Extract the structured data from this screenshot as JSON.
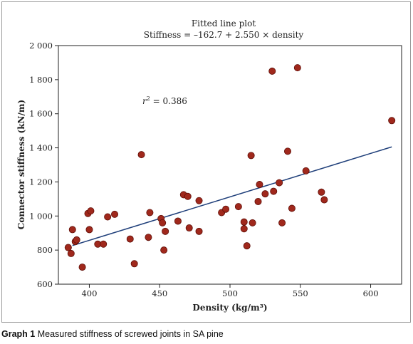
{
  "figure": {
    "title_line1": "Fitted line plot",
    "title_line2": "Stiffness = –162.7 + 2.550 × density",
    "r2_label": "r",
    "r2_sup": "2",
    "r2_value": " = 0.386"
  },
  "caption": {
    "label": "Graph 1",
    "text": " Measured stiffness of screwed joints in SA pine"
  },
  "colors": {
    "point_fill": "#a0281c",
    "point_stroke": "#5e0f08",
    "fit_line": "#1f3f7a",
    "axis": "#222222"
  },
  "chart_data": {
    "type": "scatter",
    "title": "Fitted line plot",
    "subtitle": "Stiffness = –162.7 + 2.550 × density",
    "xlabel": "Density (kg/m³)",
    "ylabel": "Connector stiffness (kN/m)",
    "xlim": [
      378,
      622
    ],
    "ylim": [
      600,
      2000
    ],
    "x_ticks": [
      400,
      450,
      500,
      550,
      600
    ],
    "x_tick_labels": [
      "400",
      "450",
      "500",
      "550",
      "600"
    ],
    "y_ticks": [
      600,
      800,
      1000,
      1200,
      1400,
      1600,
      1800,
      2000
    ],
    "y_tick_labels": [
      "600",
      "800",
      "1 000",
      "1 200",
      "1 400",
      "1 600",
      "1 800",
      "2 000"
    ],
    "grid": false,
    "fit_line": {
      "intercept": -162.7,
      "slope": 2.55,
      "x_range": [
        388,
        615
      ]
    },
    "annotation": "r² = 0.386",
    "points": [
      [
        385,
        815
      ],
      [
        387,
        780
      ],
      [
        388,
        920
      ],
      [
        390,
        850
      ],
      [
        391,
        860
      ],
      [
        395,
        700
      ],
      [
        399,
        1015
      ],
      [
        400,
        920
      ],
      [
        401,
        1030
      ],
      [
        406,
        835
      ],
      [
        410,
        835
      ],
      [
        413,
        995
      ],
      [
        418,
        1010
      ],
      [
        429,
        865
      ],
      [
        432,
        720
      ],
      [
        437,
        1360
      ],
      [
        442,
        875
      ],
      [
        443,
        1020
      ],
      [
        451,
        985
      ],
      [
        452,
        960
      ],
      [
        453,
        800
      ],
      [
        454,
        910
      ],
      [
        463,
        970
      ],
      [
        467,
        1125
      ],
      [
        470,
        1115
      ],
      [
        471,
        930
      ],
      [
        478,
        1090
      ],
      [
        478,
        910
      ],
      [
        494,
        1020
      ],
      [
        497,
        1040
      ],
      [
        506,
        1055
      ],
      [
        510,
        925
      ],
      [
        510,
        965
      ],
      [
        512,
        825
      ],
      [
        515,
        1355
      ],
      [
        516,
        960
      ],
      [
        520,
        1085
      ],
      [
        521,
        1185
      ],
      [
        525,
        1130
      ],
      [
        530,
        1850
      ],
      [
        531,
        1145
      ],
      [
        535,
        1195
      ],
      [
        537,
        960
      ],
      [
        541,
        1380
      ],
      [
        544,
        1045
      ],
      [
        548,
        1870
      ],
      [
        554,
        1265
      ],
      [
        565,
        1140
      ],
      [
        567,
        1095
      ],
      [
        615,
        1560
      ]
    ]
  }
}
